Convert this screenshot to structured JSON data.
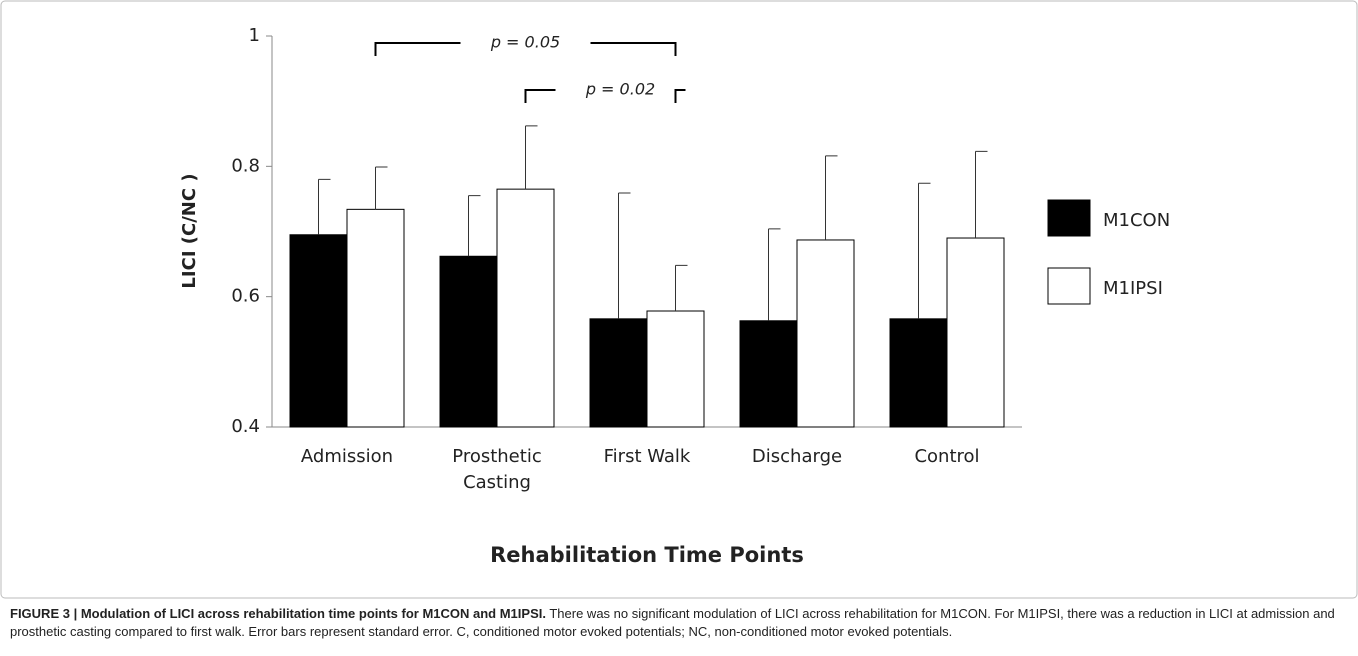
{
  "chart_data": {
    "type": "bar",
    "ylabel": "LICI  (C/NC )",
    "xlabel": "Rehabilitation Time Points",
    "categories": [
      "Admission",
      "Prosthetic\nCasting",
      "First Walk",
      "Discharge",
      "Control"
    ],
    "series": [
      {
        "name": "M1CON",
        "color": "#000000",
        "values": [
          0.695,
          0.662,
          0.566,
          0.563,
          0.566
        ],
        "errors": [
          0.085,
          0.093,
          0.193,
          0.141,
          0.208
        ]
      },
      {
        "name": "M1IPSI",
        "color": "#ffffff",
        "values": [
          0.734,
          0.765,
          0.578,
          0.687,
          0.69
        ],
        "errors": [
          0.065,
          0.097,
          0.07,
          0.129,
          0.133
        ]
      }
    ],
    "ylim": [
      0.4,
      1
    ],
    "yticks": [
      0.4,
      0.6,
      0.8,
      1
    ],
    "annotations": [
      {
        "text": "p = 0.05",
        "from": 0,
        "to": 2
      },
      {
        "text": "p = 0.02",
        "from": 1,
        "to": 2
      }
    ]
  },
  "caption": {
    "label": "FIGURE 3 | Modulation of LICI across rehabilitation time points for M1CON and M1IPSI.",
    "text": "There was no significant modulation of LICI across rehabilitation for M1CON. For M1IPSI, there was a reduction in LICI at admission and prosthetic casting compared to first walk. Error bars represent standard error. C, conditioned motor evoked potentials; NC, non-conditioned motor evoked potentials."
  }
}
